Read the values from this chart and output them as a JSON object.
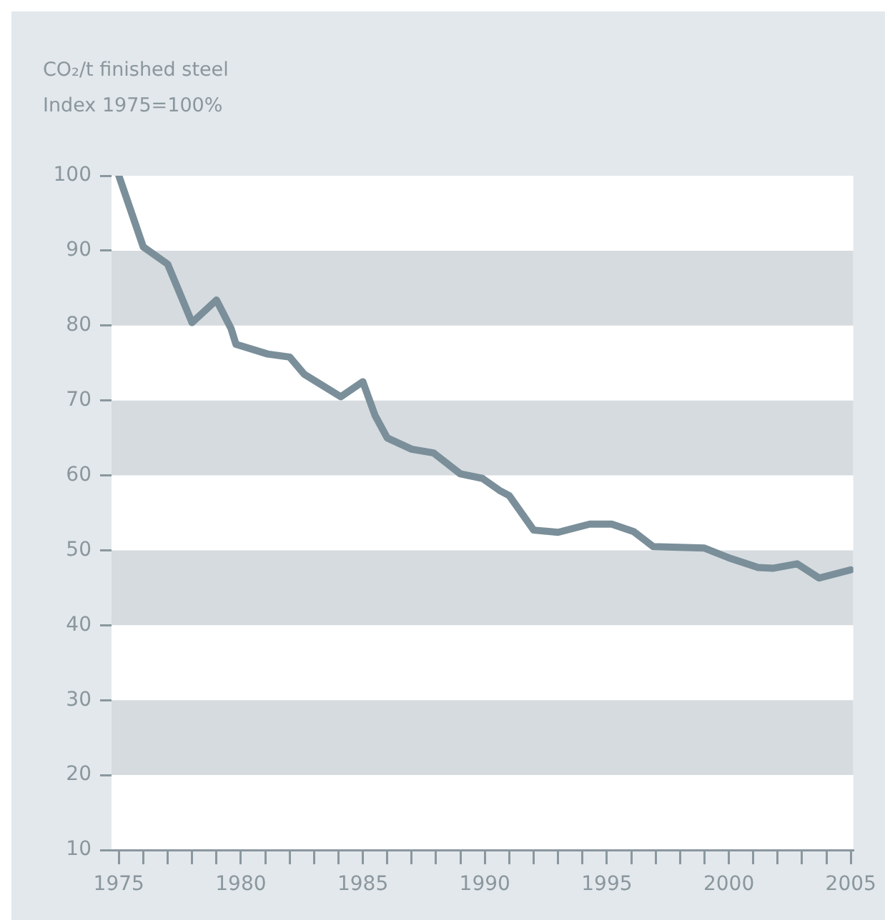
{
  "chart_data": {
    "type": "line",
    "title": "CO₂/t finished steel",
    "subtitle": "Index 1975=100%",
    "x": [
      1975,
      1976,
      1977,
      1978,
      1979,
      1979.6,
      1979.8,
      1981.1,
      1982,
      1982.6,
      1984.1,
      1985,
      1985.5,
      1986,
      1987,
      1987.9,
      1989,
      1989.9,
      1990.6,
      1991,
      1992,
      1993,
      1994.3,
      1995.2,
      1996.1,
      1996.9,
      1999,
      2000,
      2001.2,
      2001.8,
      2002.8,
      2003.7,
      2005
    ],
    "series": [
      {
        "color": "#7a8f99",
        "values": [
          100,
          90.5,
          88.2,
          80.4,
          83.4,
          79.6,
          77.5,
          76.2,
          75.8,
          73.5,
          70.5,
          72.5,
          68,
          65,
          63.5,
          63,
          60.2,
          59.6,
          58,
          57.3,
          52.7,
          52.4,
          53.5,
          53.5,
          52.5,
          50.5,
          50.3,
          49,
          47.7,
          47.6,
          48.2,
          46.3,
          47.4
        ]
      }
    ],
    "xlim": [
      1974.7,
      2005.1
    ],
    "xticks": [
      1975,
      {
        "value": 1976,
        "label": null
      },
      {
        "value": 1977,
        "label": null
      },
      {
        "value": 1978,
        "label": null
      },
      {
        "value": 1979,
        "label": null
      },
      1980,
      {
        "value": 1981,
        "label": null
      },
      {
        "value": 1982,
        "label": null
      },
      {
        "value": 1983,
        "label": null
      },
      {
        "value": 1984,
        "label": null
      },
      1985,
      {
        "value": 1986,
        "label": null
      },
      {
        "value": 1987,
        "label": null
      },
      {
        "value": 1988,
        "label": null
      },
      {
        "value": 1989,
        "label": null
      },
      1990,
      {
        "value": 1991,
        "label": null
      },
      {
        "value": 1992,
        "label": null
      },
      {
        "value": 1993,
        "label": null
      },
      {
        "value": 1994,
        "label": null
      },
      1995,
      {
        "value": 1996,
        "label": null
      },
      {
        "value": 1997,
        "label": null
      },
      {
        "value": 1998,
        "label": null
      },
      {
        "value": 1999,
        "label": null
      },
      2000,
      {
        "value": 2001,
        "label": null
      },
      {
        "value": 2002,
        "label": null
      },
      {
        "value": 2003,
        "label": null
      },
      {
        "value": 2004,
        "label": null
      },
      2005
    ],
    "ylim": [
      10,
      100
    ],
    "yticks": [
      10,
      20,
      30,
      40,
      50,
      60,
      70,
      80,
      90,
      100
    ],
    "bands": [
      {
        "axis": "y",
        "from": 80,
        "to": 90,
        "color": "#d5dbdf"
      },
      {
        "axis": "y",
        "from": 60,
        "to": 70,
        "color": "#d5dbdf"
      },
      {
        "axis": "y",
        "from": 40,
        "to": 50,
        "color": "#d5dbdf"
      },
      {
        "axis": "y",
        "from": 20,
        "to": 30,
        "color": "#d5dbdf"
      }
    ],
    "grid": false,
    "legend": false,
    "marker": "none",
    "line_style": "solid"
  }
}
